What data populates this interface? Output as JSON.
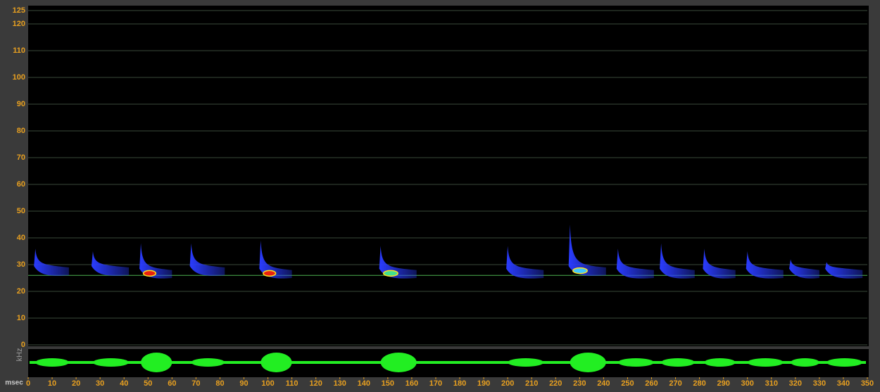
{
  "chart_data": {
    "type": "spectrogram",
    "y_label": "kHz",
    "x_label": "msec",
    "xlim": [
      0,
      350
    ],
    "ylim": [
      0,
      125
    ],
    "xticks": [
      0,
      10,
      20,
      30,
      40,
      50,
      60,
      70,
      80,
      90,
      100,
      110,
      120,
      130,
      140,
      150,
      160,
      170,
      180,
      190,
      200,
      210,
      220,
      230,
      240,
      250,
      260,
      270,
      280,
      290,
      300,
      310,
      320,
      330,
      340,
      350
    ],
    "yticks": [
      0,
      10,
      20,
      30,
      40,
      50,
      60,
      70,
      80,
      90,
      100,
      110,
      120,
      125
    ],
    "grid": true,
    "marker_line": 26,
    "base_color": "#2a3cff",
    "wave_color": "#22ee22",
    "calls": [
      {
        "start": 3,
        "end": 17,
        "high": 36,
        "low": 26,
        "color": "#2a3cff"
      },
      {
        "start": 27,
        "end": 42,
        "high": 35,
        "low": 26,
        "color": "#2a3cff"
      },
      {
        "start": 47,
        "end": 60,
        "high": 38,
        "low": 25,
        "color": "#e82010"
      },
      {
        "start": 68,
        "end": 82,
        "high": 38,
        "low": 26,
        "color": "#2a3cff"
      },
      {
        "start": 97,
        "end": 110,
        "high": 39,
        "low": 25,
        "color": "#e82010"
      },
      {
        "start": 147,
        "end": 162,
        "high": 37,
        "low": 25,
        "color": "#40e090"
      },
      {
        "start": 200,
        "end": 215,
        "high": 37,
        "low": 25,
        "color": "#2a3cff"
      },
      {
        "start": 226,
        "end": 241,
        "high": 45,
        "low": 26,
        "color": "#40c8ff"
      },
      {
        "start": 246,
        "end": 261,
        "high": 36,
        "low": 25,
        "color": "#2a3cff"
      },
      {
        "start": 264,
        "end": 278,
        "high": 38,
        "low": 25,
        "color": "#2a3cff"
      },
      {
        "start": 282,
        "end": 295,
        "high": 36,
        "low": 25,
        "color": "#2a3cff"
      },
      {
        "start": 300,
        "end": 315,
        "high": 35,
        "low": 25,
        "color": "#2a3cff"
      },
      {
        "start": 318,
        "end": 330,
        "high": 32,
        "low": 25,
        "color": "#2a3cff"
      },
      {
        "start": 333,
        "end": 348,
        "high": 31,
        "low": 25,
        "color": "#2a3cff"
      }
    ]
  }
}
